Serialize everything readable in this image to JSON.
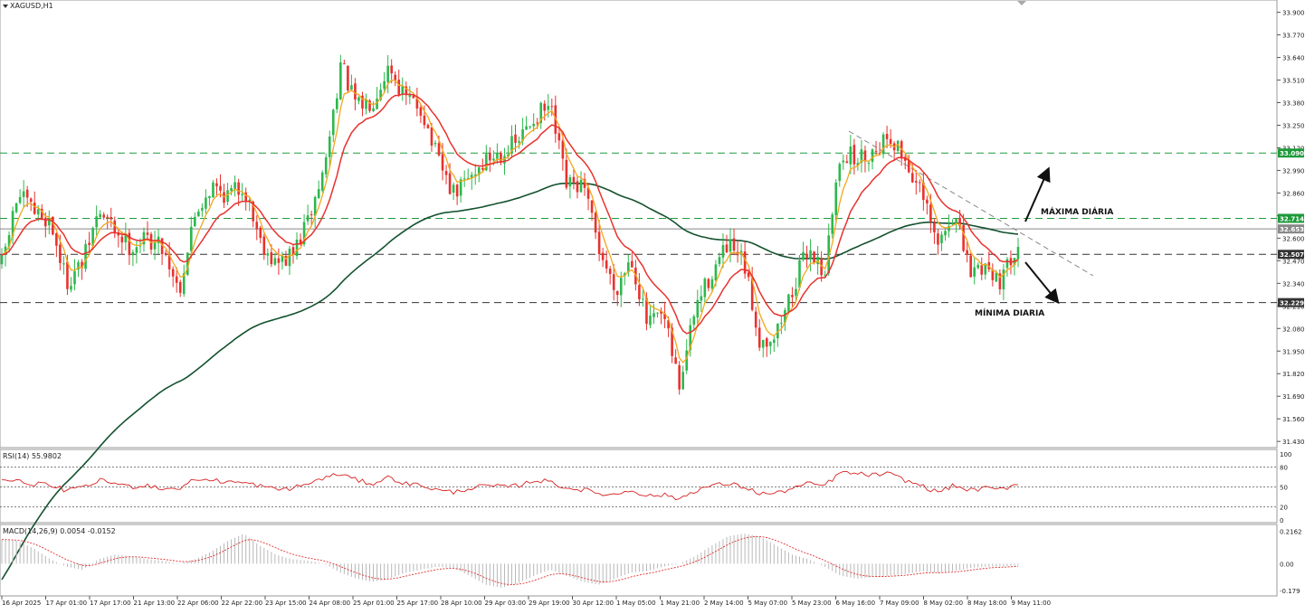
{
  "chart_data": {
    "type": "candlestick",
    "symbol_label": "XAGUSD,H1",
    "price_axis": {
      "ticks": [
        "33.900",
        "33.770",
        "33.640",
        "33.510",
        "33.380",
        "33.250",
        "33.120",
        "32.990",
        "32.860",
        "32.730",
        "32.600",
        "32.470",
        "32.340",
        "32.210",
        "32.080",
        "31.950",
        "31.820",
        "31.690",
        "31.560",
        "31.430"
      ],
      "range": [
        31.41,
        33.95
      ]
    },
    "time_labels": [
      "16 Apr 2025",
      "17 Apr 01:00",
      "17 Apr 17:00",
      "21 Apr 13:00",
      "22 Apr 06:00",
      "22 Apr 22:00",
      "23 Apr 15:00",
      "24 Apr 08:00",
      "25 Apr 01:00",
      "25 Apr 17:00",
      "28 Apr 10:00",
      "29 Apr 03:00",
      "29 Apr 19:00",
      "30 Apr 12:00",
      "1 May 05:00",
      "1 May 21:00",
      "2 May 14:00",
      "5 May 07:00",
      "5 May 23:00",
      "6 May 16:00",
      "7 May 09:00",
      "8 May 02:00",
      "8 May 18:00",
      "9 May 11:00"
    ],
    "candle_colors": {
      "up": "#2db84d",
      "down": "#e8322e"
    },
    "ma_colors": {
      "fast": "#f2a81d",
      "mid": "#e8322e",
      "slow": "#14522f"
    },
    "levels": [
      {
        "price": "33.090",
        "value": 33.09,
        "color": "#1e9a3a",
        "style": "dashed"
      },
      {
        "price": "32.714",
        "value": 32.714,
        "color": "#1e9a3a",
        "style": "dashed"
      },
      {
        "price": "32.653",
        "value": 32.653,
        "color": "#888888",
        "style": "solid"
      },
      {
        "price": "32.507",
        "value": 32.507,
        "color": "#333333",
        "style": "dashed"
      },
      {
        "price": "32.229",
        "value": 32.229,
        "color": "#333333",
        "style": "dashed"
      }
    ],
    "annotations": {
      "max_label": "MÁXIMA DIÁRIA",
      "min_label": "MÍNIMA DIARIA"
    },
    "price_anchors": [
      32.45,
      32.85,
      32.75,
      32.7,
      32.35,
      32.45,
      32.75,
      32.65,
      32.55,
      32.6,
      32.55,
      32.3,
      32.75,
      32.9,
      32.85,
      32.9,
      32.6,
      32.45,
      32.5,
      32.7,
      33.0,
      33.6,
      33.35,
      33.4,
      33.6,
      33.4,
      33.35,
      33.05,
      32.85,
      32.95,
      33.05,
      33.1,
      33.15,
      33.3,
      33.35,
      32.9,
      32.9,
      32.55,
      32.3,
      32.5,
      32.1,
      32.15,
      31.75,
      32.2,
      32.4,
      32.55,
      32.45,
      32.0,
      32.05,
      32.3,
      32.55,
      32.4,
      33.1,
      33.05,
      33.1,
      33.2,
      33.05,
      32.85,
      32.55,
      32.75,
      32.4,
      32.45,
      32.35,
      32.6
    ],
    "rsi": {
      "label": "RSI(14) 55.9802",
      "ticks": [
        "100",
        "80",
        "50",
        "20",
        "0"
      ],
      "levels": [
        80,
        50,
        20
      ],
      "anchors": [
        62,
        58,
        55,
        52,
        45,
        48,
        60,
        56,
        50,
        53,
        47,
        48,
        62,
        60,
        58,
        56,
        52,
        46,
        48,
        55,
        64,
        70,
        60,
        55,
        65,
        55,
        53,
        45,
        42,
        48,
        52,
        50,
        52,
        60,
        58,
        48,
        46,
        40,
        38,
        46,
        36,
        38,
        32,
        45,
        52,
        55,
        50,
        40,
        40,
        48,
        55,
        52,
        72,
        70,
        68,
        70,
        60,
        52,
        42,
        52,
        45,
        48,
        46,
        56
      ]
    },
    "macd": {
      "label": "MACD(14,26,9) 0.0054 -0.0152",
      "ticks": [
        "0.2162",
        "0.00",
        "-0.179"
      ],
      "range": [
        -0.19,
        0.23
      ],
      "anchors": [
        0.16,
        0.15,
        0.1,
        0.03,
        -0.02,
        -0.04,
        0.03,
        0.06,
        0.05,
        0.03,
        0.02,
        0.0,
        0.03,
        0.08,
        0.15,
        0.2,
        0.12,
        0.06,
        0.03,
        0.02,
        0.0,
        -0.06,
        -0.1,
        -0.12,
        -0.1,
        -0.06,
        -0.04,
        -0.02,
        -0.03,
        -0.08,
        -0.14,
        -0.16,
        -0.13,
        -0.08,
        -0.04,
        -0.08,
        -0.12,
        -0.14,
        -0.1,
        -0.06,
        -0.05,
        -0.02,
        0.0,
        0.05,
        0.12,
        0.18,
        0.2,
        0.18,
        0.12,
        0.06,
        0.03,
        -0.02,
        -0.08,
        -0.1,
        -0.09,
        -0.08,
        -0.07,
        -0.05,
        -0.06,
        -0.05,
        -0.03,
        -0.02,
        -0.02,
        -0.01
      ]
    }
  }
}
